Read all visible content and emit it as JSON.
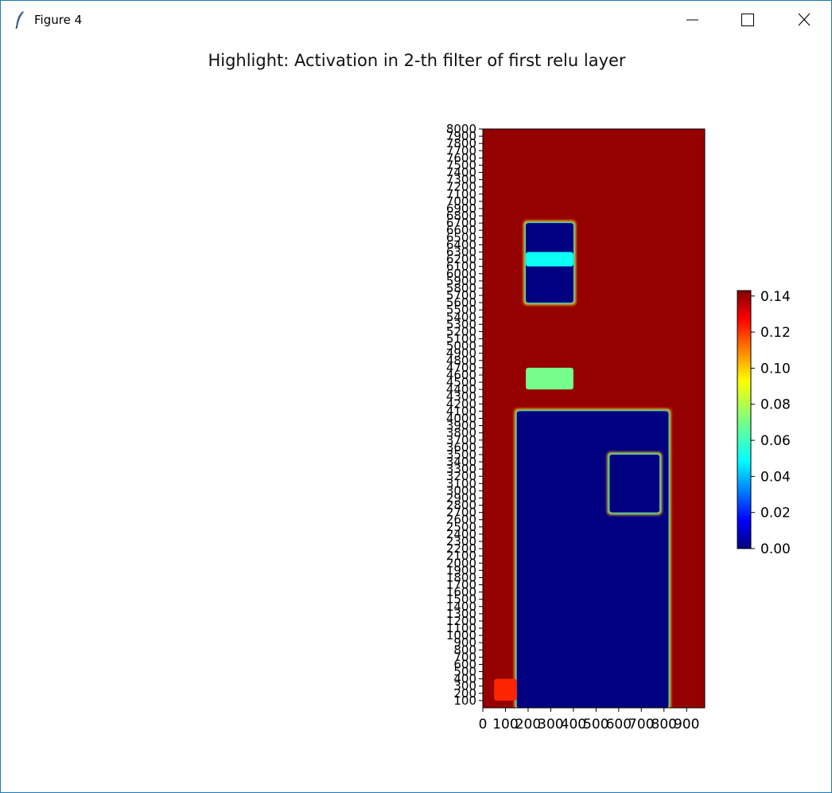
{
  "window": {
    "title": "Figure 4",
    "icon": "feather-icon",
    "controls": [
      "minimize-icon",
      "maximize-icon",
      "close-icon"
    ]
  },
  "chart_data": {
    "type": "heatmap",
    "title": "Highlight: Activation in 2-th filter of first relu layer",
    "xlabel": "",
    "ylabel": "",
    "colormap": "jet",
    "x_ticks": [
      "0",
      "100",
      "200",
      "300",
      "400",
      "500",
      "600",
      "700",
      "800",
      "900"
    ],
    "y_ticks": [
      "100",
      "200",
      "300",
      "400",
      "500",
      "600",
      "700",
      "800",
      "900",
      "1000",
      "1100",
      "1200",
      "1300",
      "1400",
      "1500",
      "1600",
      "1700",
      "1800",
      "1900",
      "2000",
      "2100",
      "2200",
      "2300",
      "2400",
      "2500",
      "2600",
      "2700",
      "2800",
      "2900",
      "3000",
      "3100",
      "3200",
      "3300",
      "3400",
      "3500",
      "3600",
      "3700",
      "3800",
      "3900",
      "4000",
      "4100",
      "4200",
      "4300",
      "4400",
      "4500",
      "4600",
      "4700",
      "4800",
      "4900",
      "5000",
      "5100",
      "5200",
      "5300",
      "5400",
      "5500",
      "5600",
      "5700",
      "5800",
      "5900",
      "6000",
      "6100",
      "6200",
      "6300",
      "6400",
      "6500",
      "6600",
      "6700",
      "6800",
      "6900",
      "7000",
      "7100",
      "7200",
      "7300",
      "7400",
      "7500",
      "7600",
      "7700",
      "7800",
      "7900",
      "8000"
    ],
    "xlim": [
      0,
      980
    ],
    "ylim": [
      0,
      8000
    ],
    "background_value": 0.14,
    "colorbar": {
      "ticks": [
        "0.00",
        "0.02",
        "0.04",
        "0.06",
        "0.08",
        "0.10",
        "0.12",
        "0.14"
      ],
      "range": [
        0,
        0.143
      ]
    },
    "regions": [
      {
        "name": "upper block",
        "x": [
          190,
          400
        ],
        "y": [
          5600,
          6700
        ],
        "value": 0.0
      },
      {
        "name": "middle band",
        "x": [
          190,
          400
        ],
        "y": [
          6100,
          6300
        ],
        "value": 0.055
      },
      {
        "name": "lower band",
        "x": [
          190,
          400
        ],
        "y": [
          4400,
          4700
        ],
        "value": 0.07
      },
      {
        "name": "main region",
        "x": [
          150,
          820
        ],
        "y": [
          0,
          4100
        ],
        "value": 0.0
      },
      {
        "name": "right patch",
        "x": [
          560,
          780
        ],
        "y": [
          2700,
          3500
        ],
        "value": 0.0
      },
      {
        "name": "corner spot",
        "x": [
          50,
          150
        ],
        "y": [
          100,
          400
        ],
        "value": 0.12
      }
    ]
  }
}
